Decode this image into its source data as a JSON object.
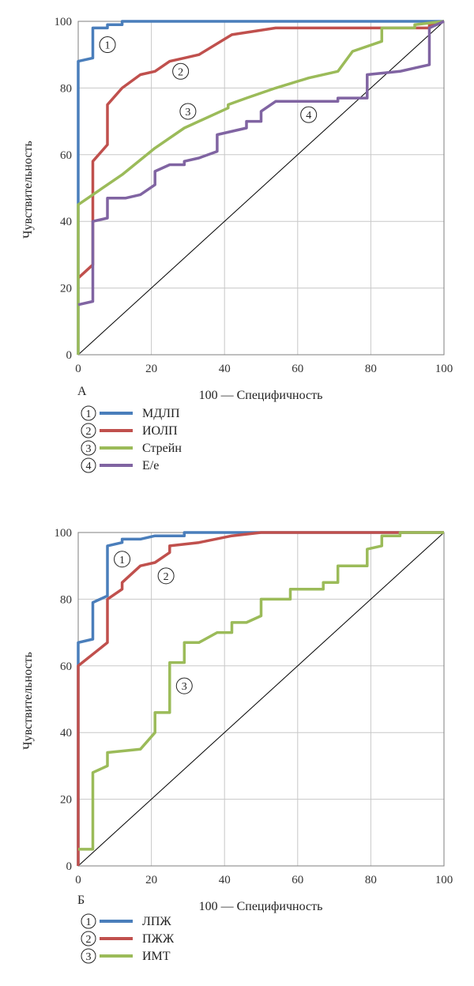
{
  "chart_data": [
    {
      "type": "line",
      "panel_label": "А",
      "xlabel": "100 — Специфичность",
      "ylabel": "Чувствительность",
      "xlim": [
        0,
        100
      ],
      "ylim": [
        0,
        100
      ],
      "x_ticks": [
        "0",
        "20",
        "40",
        "60",
        "80",
        "100"
      ],
      "y_ticks": [
        "0",
        "20",
        "40",
        "60",
        "80",
        "100"
      ],
      "grid": true,
      "diagonal_reference": true,
      "legend_position": "bottom-left",
      "series": [
        {
          "name": "МДЛП",
          "marker": "①",
          "color": "#4a7ebb",
          "marker_pos": [
            8,
            93
          ],
          "points": [
            [
              0,
              0
            ],
            [
              0,
              88
            ],
            [
              4,
              89
            ],
            [
              4,
              98
            ],
            [
              8,
              98
            ],
            [
              8,
              99
            ],
            [
              12,
              99
            ],
            [
              12,
              100
            ],
            [
              100,
              100
            ]
          ]
        },
        {
          "name": "ИОЛП",
          "marker": "②",
          "color": "#c0504d",
          "marker_pos": [
            28,
            85
          ],
          "points": [
            [
              0,
              23
            ],
            [
              4,
              27
            ],
            [
              4,
              58
            ],
            [
              8,
              63
            ],
            [
              8,
              75
            ],
            [
              12,
              80
            ],
            [
              17,
              84
            ],
            [
              21,
              85
            ],
            [
              25,
              88
            ],
            [
              29,
              89
            ],
            [
              33,
              90
            ],
            [
              42,
              96
            ],
            [
              54,
              98
            ],
            [
              92,
              98
            ],
            [
              96,
              98
            ],
            [
              96,
              99
            ],
            [
              100,
              100
            ]
          ]
        },
        {
          "name": "Стрейн",
          "marker": "③",
          "color": "#9bbb59",
          "marker_pos": [
            30,
            73
          ],
          "points": [
            [
              0,
              0
            ],
            [
              0,
              45
            ],
            [
              4,
              48
            ],
            [
              12,
              54
            ],
            [
              21,
              62
            ],
            [
              29,
              68
            ],
            [
              41,
              74
            ],
            [
              41,
              75
            ],
            [
              46,
              77
            ],
            [
              54,
              80
            ],
            [
              63,
              83
            ],
            [
              71,
              85
            ],
            [
              75,
              91
            ],
            [
              83,
              94
            ],
            [
              83,
              98
            ],
            [
              92,
              98
            ],
            [
              92,
              99
            ],
            [
              100,
              100
            ]
          ]
        },
        {
          "name": "E/e",
          "marker": "④",
          "color": "#8064a2",
          "marker_pos": [
            63,
            72
          ],
          "points": [
            [
              0,
              15
            ],
            [
              4,
              16
            ],
            [
              4,
              40
            ],
            [
              8,
              41
            ],
            [
              8,
              47
            ],
            [
              13,
              47
            ],
            [
              17,
              48
            ],
            [
              21,
              51
            ],
            [
              21,
              55
            ],
            [
              25,
              57
            ],
            [
              29,
              57
            ],
            [
              29,
              58
            ],
            [
              33,
              59
            ],
            [
              38,
              61
            ],
            [
              38,
              66
            ],
            [
              46,
              68
            ],
            [
              46,
              70
            ],
            [
              50,
              70
            ],
            [
              50,
              73
            ],
            [
              54,
              76
            ],
            [
              71,
              76
            ],
            [
              71,
              77
            ],
            [
              79,
              77
            ],
            [
              79,
              84
            ],
            [
              88,
              85
            ],
            [
              92,
              86
            ],
            [
              96,
              87
            ],
            [
              96,
              98
            ],
            [
              100,
              100
            ]
          ]
        }
      ]
    },
    {
      "type": "line",
      "panel_label": "Б",
      "xlabel": "100 — Специфичность",
      "ylabel": "Чувствительность",
      "xlim": [
        0,
        100
      ],
      "ylim": [
        0,
        100
      ],
      "x_ticks": [
        "0",
        "20",
        "40",
        "60",
        "80",
        "100"
      ],
      "y_ticks": [
        "0",
        "20",
        "40",
        "60",
        "80",
        "100"
      ],
      "grid": true,
      "diagonal_reference": true,
      "legend_position": "bottom-left",
      "series": [
        {
          "name": "ЛПЖ",
          "marker": "①",
          "color": "#4a7ebb",
          "marker_pos": [
            12,
            92
          ],
          "points": [
            [
              0,
              0
            ],
            [
              0,
              67
            ],
            [
              4,
              68
            ],
            [
              4,
              79
            ],
            [
              8,
              81
            ],
            [
              8,
              96
            ],
            [
              12,
              97
            ],
            [
              12,
              98
            ],
            [
              17,
              98
            ],
            [
              21,
              99
            ],
            [
              29,
              99
            ],
            [
              29,
              100
            ],
            [
              100,
              100
            ]
          ]
        },
        {
          "name": "ПЖЖ",
          "marker": "②",
          "color": "#c0504d",
          "marker_pos": [
            24,
            87
          ],
          "points": [
            [
              0,
              0
            ],
            [
              0,
              60
            ],
            [
              8,
              67
            ],
            [
              8,
              80
            ],
            [
              12,
              83
            ],
            [
              12,
              85
            ],
            [
              17,
              90
            ],
            [
              21,
              91
            ],
            [
              25,
              94
            ],
            [
              25,
              96
            ],
            [
              33,
              97
            ],
            [
              42,
              99
            ],
            [
              50,
              100
            ],
            [
              88,
              100
            ],
            [
              100,
              100
            ]
          ]
        },
        {
          "name": "ИМТ",
          "marker": "③",
          "color": "#9bbb59",
          "marker_pos": [
            29,
            54
          ],
          "points": [
            [
              0,
              5
            ],
            [
              4,
              5
            ],
            [
              4,
              28
            ],
            [
              8,
              30
            ],
            [
              8,
              34
            ],
            [
              17,
              35
            ],
            [
              21,
              40
            ],
            [
              21,
              46
            ],
            [
              25,
              46
            ],
            [
              25,
              61
            ],
            [
              29,
              61
            ],
            [
              29,
              67
            ],
            [
              33,
              67
            ],
            [
              38,
              70
            ],
            [
              42,
              70
            ],
            [
              42,
              73
            ],
            [
              46,
              73
            ],
            [
              50,
              75
            ],
            [
              50,
              80
            ],
            [
              58,
              80
            ],
            [
              58,
              83
            ],
            [
              67,
              83
            ],
            [
              67,
              85
            ],
            [
              71,
              85
            ],
            [
              71,
              90
            ],
            [
              79,
              90
            ],
            [
              79,
              95
            ],
            [
              83,
              96
            ],
            [
              83,
              99
            ],
            [
              88,
              99
            ],
            [
              88,
              100
            ],
            [
              100,
              100
            ]
          ]
        }
      ]
    }
  ]
}
